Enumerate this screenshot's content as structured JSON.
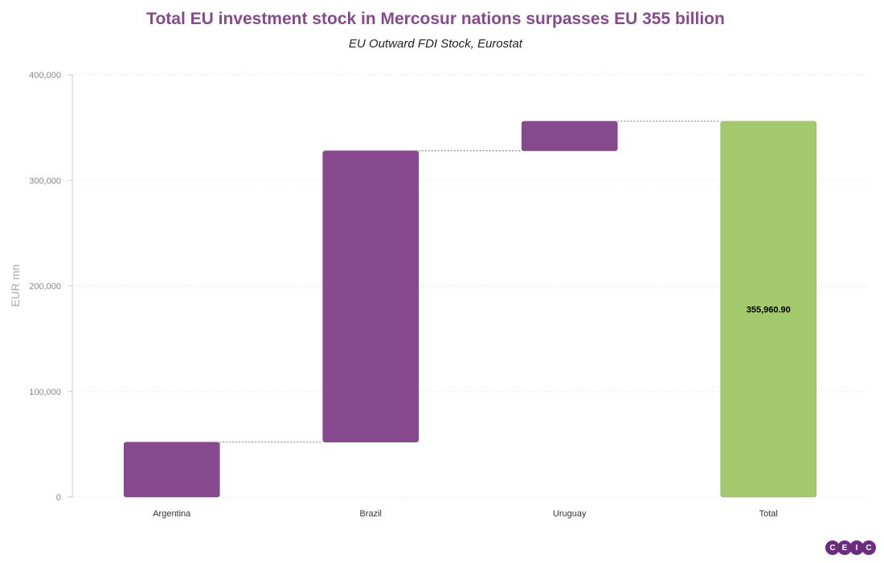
{
  "chart_data": {
    "type": "waterfall",
    "title": "Total EU investment stock in Mercosur nations surpasses EU 355 billion",
    "subtitle": "EU Outward FDI Stock, Eurostat",
    "xlabel": "",
    "ylabel": "EUR mn",
    "ylim": [
      0,
      400000
    ],
    "yticks": [
      "0",
      "100,000",
      "200,000",
      "300,000",
      "400,000"
    ],
    "grid": true,
    "categories": [
      "Argentina",
      "Brazil",
      "Uruguay",
      "Total"
    ],
    "values": [
      52000,
      276000,
      27960.9,
      355960.9
    ],
    "is_total": [
      false,
      false,
      false,
      true
    ],
    "data_labels": [
      "",
      "",
      "",
      "355,960.90"
    ],
    "colors": {
      "increase": "#884a8e",
      "total": "#a2c96c"
    }
  },
  "logo": [
    "C",
    "E",
    "I",
    "C"
  ]
}
